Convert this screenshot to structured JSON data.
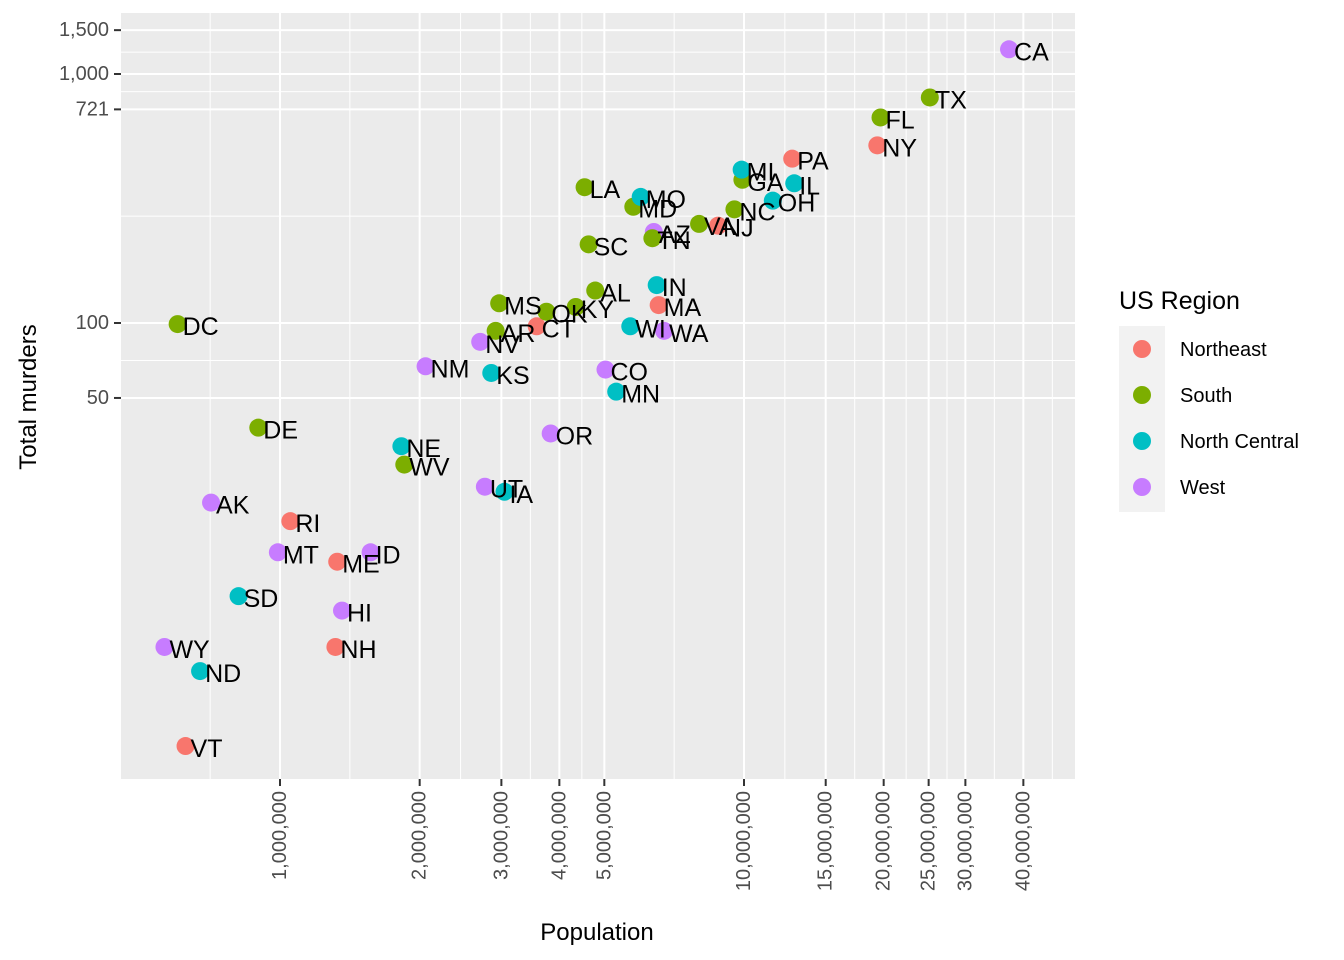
{
  "chart_data": {
    "type": "scatter",
    "title": "",
    "xlabel": "Population",
    "ylabel": "Total murders",
    "x_scale": "log10",
    "y_scale": "log10",
    "xlim": [
      430000,
      50000000
    ],
    "ylim": [
      1.4,
      1800
    ],
    "grid": true,
    "x_ticks": [
      {
        "value": 1000000,
        "label": "1,000,000"
      },
      {
        "value": 2000000,
        "label": "2,000,000"
      },
      {
        "value": 3000000,
        "label": "3,000,000"
      },
      {
        "value": 4000000,
        "label": "4,000,000"
      },
      {
        "value": 5000000,
        "label": "5,000,000"
      },
      {
        "value": 10000000,
        "label": "10,000,000"
      },
      {
        "value": 15000000,
        "label": "15,000,000"
      },
      {
        "value": 20000000,
        "label": "20,000,000"
      },
      {
        "value": 25000000,
        "label": "25,000,000"
      },
      {
        "value": 30000000,
        "label": "30,000,000"
      },
      {
        "value": 40000000,
        "label": "40,000,000"
      }
    ],
    "y_ticks": [
      {
        "value": 50,
        "label": "50"
      },
      {
        "value": 100,
        "label": "100"
      },
      {
        "value": 721,
        "label": "721"
      },
      {
        "value": 1000,
        "label": "1,000"
      },
      {
        "value": 1500,
        "label": "1,500"
      }
    ],
    "legend": {
      "title": "US Region",
      "position": "right",
      "entries": [
        {
          "name": "Northeast",
          "color": "#F8766D"
        },
        {
          "name": "South",
          "color": "#7CAE00"
        },
        {
          "name": "North Central",
          "color": "#00BFC4"
        },
        {
          "name": "West",
          "color": "#C77CFF"
        }
      ]
    },
    "points": [
      {
        "label": "AL",
        "region": "South",
        "population": 4779736,
        "murders": 135
      },
      {
        "label": "AK",
        "region": "West",
        "population": 710231,
        "murders": 19
      },
      {
        "label": "AZ",
        "region": "West",
        "population": 6392017,
        "murders": 232
      },
      {
        "label": "AR",
        "region": "South",
        "population": 2915918,
        "murders": 93
      },
      {
        "label": "CA",
        "region": "West",
        "population": 37253956,
        "murders": 1257
      },
      {
        "label": "CO",
        "region": "West",
        "population": 5029196,
        "murders": 65
      },
      {
        "label": "CT",
        "region": "Northeast",
        "population": 3574097,
        "murders": 97
      },
      {
        "label": "DE",
        "region": "South",
        "population": 897934,
        "murders": 38
      },
      {
        "label": "DC",
        "region": "South",
        "population": 601723,
        "murders": 99
      },
      {
        "label": "FL",
        "region": "South",
        "population": 19687653,
        "murders": 669
      },
      {
        "label": "GA",
        "region": "South",
        "population": 9920000,
        "murders": 376
      },
      {
        "label": "HI",
        "region": "West",
        "population": 1360301,
        "murders": 7
      },
      {
        "label": "ID",
        "region": "West",
        "population": 1567582,
        "murders": 12
      },
      {
        "label": "IL",
        "region": "North Central",
        "population": 12830632,
        "murders": 364
      },
      {
        "label": "IN",
        "region": "North Central",
        "population": 6483802,
        "murders": 142
      },
      {
        "label": "IA",
        "region": "North Central",
        "population": 3046355,
        "murders": 21
      },
      {
        "label": "KS",
        "region": "North Central",
        "population": 2853118,
        "murders": 63
      },
      {
        "label": "KY",
        "region": "South",
        "population": 4339367,
        "murders": 116
      },
      {
        "label": "LA",
        "region": "South",
        "population": 4533372,
        "murders": 351
      },
      {
        "label": "ME",
        "region": "Northeast",
        "population": 1328361,
        "murders": 11
      },
      {
        "label": "MD",
        "region": "South",
        "population": 5773552,
        "murders": 293
      },
      {
        "label": "MA",
        "region": "Northeast",
        "population": 6547629,
        "murders": 118
      },
      {
        "label": "MI",
        "region": "North Central",
        "population": 9883640,
        "murders": 413
      },
      {
        "label": "MN",
        "region": "North Central",
        "population": 5303925,
        "murders": 53
      },
      {
        "label": "MS",
        "region": "South",
        "population": 2967297,
        "murders": 120
      },
      {
        "label": "MO",
        "region": "North Central",
        "population": 5988927,
        "murders": 321
      },
      {
        "label": "MT",
        "region": "West",
        "population": 989415,
        "murders": 12
      },
      {
        "label": "NE",
        "region": "North Central",
        "population": 1826341,
        "murders": 32
      },
      {
        "label": "NV",
        "region": "West",
        "population": 2700551,
        "murders": 84
      },
      {
        "label": "NH",
        "region": "Northeast",
        "population": 1316470,
        "murders": 5
      },
      {
        "label": "NJ",
        "region": "Northeast",
        "population": 8791894,
        "murders": 246
      },
      {
        "label": "NM",
        "region": "West",
        "population": 2059179,
        "murders": 67
      },
      {
        "label": "NY",
        "region": "Northeast",
        "population": 19378102,
        "murders": 517
      },
      {
        "label": "NC",
        "region": "South",
        "population": 9535483,
        "murders": 286
      },
      {
        "label": "ND",
        "region": "North Central",
        "population": 672591,
        "murders": 4
      },
      {
        "label": "OH",
        "region": "North Central",
        "population": 11536504,
        "murders": 310
      },
      {
        "label": "OK",
        "region": "South",
        "population": 3751351,
        "murders": 111
      },
      {
        "label": "OR",
        "region": "West",
        "population": 3831074,
        "murders": 36
      },
      {
        "label": "PA",
        "region": "Northeast",
        "population": 12702379,
        "murders": 457
      },
      {
        "label": "RI",
        "region": "Northeast",
        "population": 1052567,
        "murders": 16
      },
      {
        "label": "SC",
        "region": "South",
        "population": 4625364,
        "murders": 207
      },
      {
        "label": "SD",
        "region": "North Central",
        "population": 814180,
        "murders": 8
      },
      {
        "label": "TN",
        "region": "South",
        "population": 6346105,
        "murders": 219
      },
      {
        "label": "TX",
        "region": "South",
        "population": 25145561,
        "murders": 805
      },
      {
        "label": "UT",
        "region": "West",
        "population": 2763885,
        "murders": 22
      },
      {
        "label": "VT",
        "region": "Northeast",
        "population": 625741,
        "murders": 2
      },
      {
        "label": "VA",
        "region": "South",
        "population": 8001024,
        "murders": 250
      },
      {
        "label": "WA",
        "region": "West",
        "population": 6724540,
        "murders": 93
      },
      {
        "label": "WV",
        "region": "South",
        "population": 1852994,
        "murders": 27
      },
      {
        "label": "WI",
        "region": "North Central",
        "population": 5686986,
        "murders": 97
      },
      {
        "label": "WY",
        "region": "West",
        "population": 563626,
        "murders": 5
      }
    ]
  }
}
